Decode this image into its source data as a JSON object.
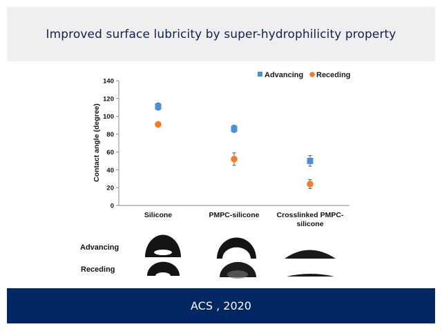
{
  "header": {
    "title": "Improved surface lubricity by super-hydrophilicity property"
  },
  "footer": {
    "citation": "ACS , 2020"
  },
  "colors": {
    "header_bg": "#efefef",
    "title_text": "#13204a",
    "footer_bg": "#002664",
    "advancing": "#4a90d9",
    "receding": "#f07d2a"
  },
  "chart_data": {
    "type": "scatter",
    "title": "",
    "xlabel": "",
    "ylabel": "Contact angle (degree)",
    "ylim": [
      0,
      140
    ],
    "yticks": [
      0,
      20,
      40,
      60,
      80,
      100,
      120,
      140
    ],
    "categories": [
      "Silicone",
      "PMPC-silicone",
      "Crosslinked PMPC-silicone"
    ],
    "category_label_lines": [
      [
        "Silicone"
      ],
      [
        "PMPC-silicone"
      ],
      [
        "Crosslinked PMPC-",
        "silicone"
      ]
    ],
    "series": [
      {
        "name": "Advancing",
        "marker": "square",
        "color": "#4a90d9",
        "values": [
          111,
          86,
          50
        ],
        "errors": [
          4,
          4,
          6
        ]
      },
      {
        "name": "Receding",
        "marker": "circle",
        "color": "#f07d2a",
        "values": [
          91,
          52,
          24
        ],
        "errors": [
          0,
          7,
          5
        ]
      }
    ],
    "legend": {
      "position": "top-right",
      "entries": [
        "Advancing",
        "Receding"
      ]
    },
    "grid": false
  },
  "droplet_images": {
    "row_labels": [
      "Advancing",
      "Receding"
    ]
  }
}
